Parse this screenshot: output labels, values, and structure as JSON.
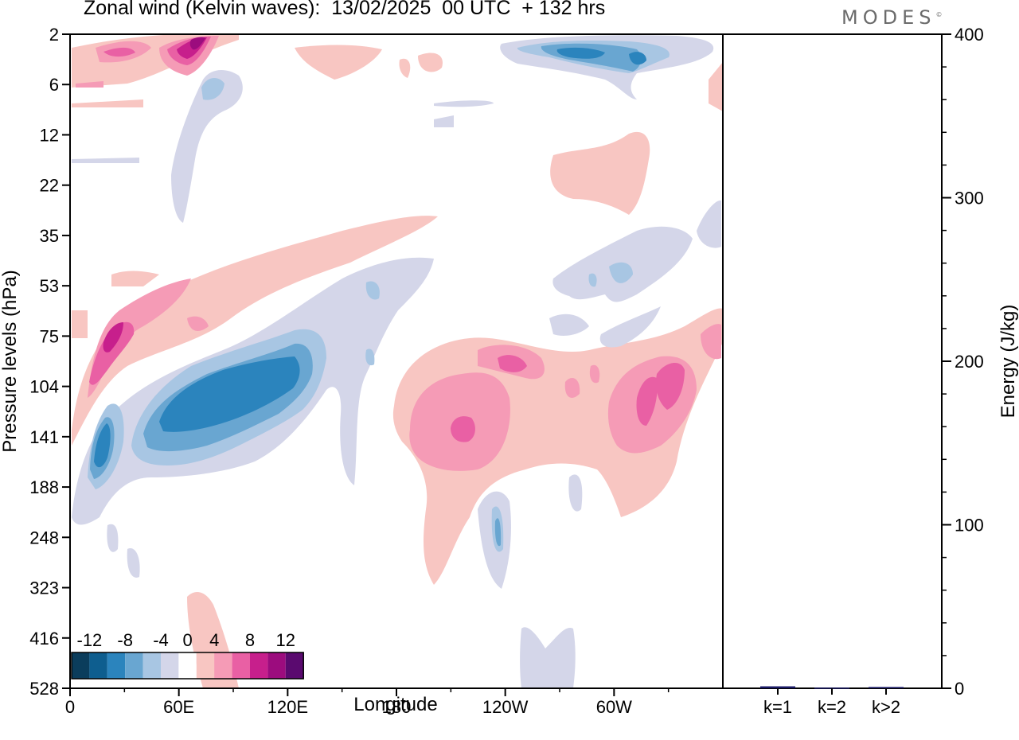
{
  "title": "Zonal wind (Kelvin waves):  13/02/2025  00 UTC  + 132 hrs",
  "brand": "MODES",
  "brand_mark": "©",
  "chart_data": [
    {
      "type": "heatmap",
      "name": "zonal-wind-kelvin-waves",
      "xlabel": "Longitude",
      "ylabel": "Pressure levels (hPa)",
      "x_ticks": [
        "0",
        "60E",
        "120E",
        "180",
        "120W",
        "60W"
      ],
      "y_ticks": [
        "2",
        "6",
        "12",
        "22",
        "35",
        "53",
        "75",
        "104",
        "141",
        "188",
        "248",
        "323",
        "416",
        "528"
      ],
      "xlim": [
        0,
        360
      ],
      "colorbar": {
        "tick_labels": [
          "-12",
          "-8",
          "-4",
          "0",
          "4",
          "8",
          "12"
        ],
        "bins": [
          -14,
          -12,
          -10,
          -8,
          -6,
          -4,
          -2,
          2,
          4,
          6,
          8,
          10,
          12,
          14
        ],
        "colors": [
          "#0b3d5c",
          "#0e5e8f",
          "#2b84bd",
          "#69a6d1",
          "#a8c6e3",
          "#d4d6e9",
          "#ffffff",
          "#f8c6c2",
          "#f59bb6",
          "#e960a4",
          "#c71f8c",
          "#9c0c7e",
          "#5a0a6f"
        ]
      },
      "features": [
        {
          "label": "positive",
          "value": 6,
          "lon": [
            12,
            75
          ],
          "hPa": [
            50,
            190
          ]
        },
        {
          "label": "negative",
          "value": -10,
          "lon": [
            40,
            130
          ],
          "hPa": [
            90,
            180
          ]
        },
        {
          "label": "negative",
          "value": -8,
          "lon": [
            10,
            30
          ],
          "hPa": [
            110,
            200
          ]
        },
        {
          "label": "positive",
          "value": 6,
          "lon": [
            185,
            270
          ],
          "hPa": [
            90,
            330
          ]
        },
        {
          "label": "positive",
          "value": 6,
          "lon": [
            290,
            350
          ],
          "hPa": [
            80,
            230
          ]
        },
        {
          "label": "negative",
          "value": -6,
          "lon": [
            240,
            300
          ],
          "hPa": [
            2,
            8
          ]
        },
        {
          "label": "positive",
          "value": 10,
          "lon": [
            55,
            80
          ],
          "hPa": [
            2,
            6
          ]
        }
      ]
    },
    {
      "type": "bar",
      "name": "kelvin-wave-energy",
      "categories": [
        "k=1",
        "k=2",
        "k>2"
      ],
      "values": [
        1.2,
        0.4,
        0.8
      ],
      "ylabel": "Energy (J/kg)",
      "ylim": [
        0,
        400
      ],
      "y_ticks": [
        "0",
        "100",
        "200",
        "300",
        "400"
      ],
      "bar_color": "#1a1a66"
    }
  ]
}
